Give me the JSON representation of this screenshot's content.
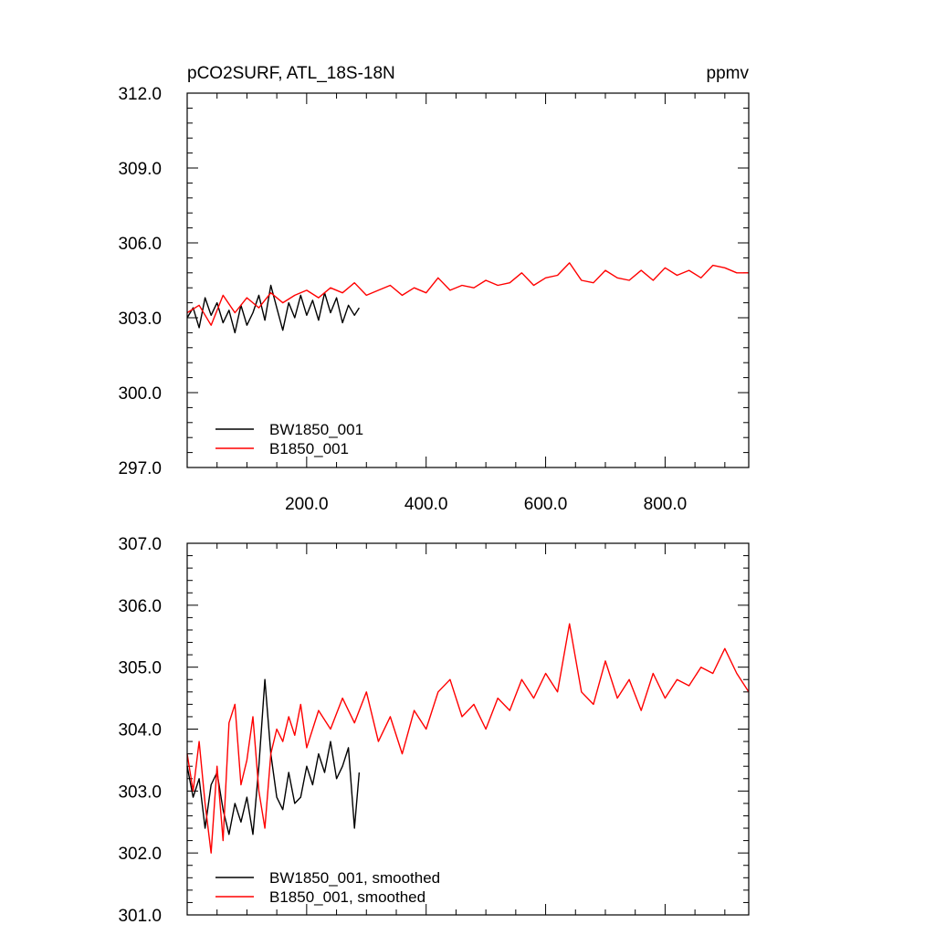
{
  "chart_data": [
    {
      "type": "line",
      "title": "pCO2SURF, ATL_18S-18N",
      "units": "ppmv",
      "xlim": [
        0,
        940
      ],
      "ylim": [
        297.0,
        312.0
      ],
      "xticks": [
        200,
        400,
        600,
        800
      ],
      "xtick_labels": [
        "200.0",
        "400.0",
        "600.0",
        "800.0"
      ],
      "yticks": [
        297,
        300,
        303,
        306,
        309,
        312
      ],
      "ytick_labels": [
        "297.0",
        "300.0",
        "303.0",
        "306.0",
        "309.0",
        "312.0"
      ],
      "legend_position": "bottom-left",
      "series": [
        {
          "name": "BW1850_001",
          "color": "#000000",
          "x": [
            0,
            10,
            20,
            30,
            40,
            50,
            60,
            70,
            80,
            90,
            100,
            110,
            120,
            130,
            140,
            150,
            160,
            170,
            180,
            190,
            200,
            210,
            220,
            230,
            240,
            250,
            260,
            270,
            280,
            288
          ],
          "y": [
            303.0,
            303.4,
            302.6,
            303.8,
            303.1,
            303.6,
            302.8,
            303.3,
            302.4,
            303.5,
            302.7,
            303.2,
            303.9,
            302.9,
            304.3,
            303.4,
            302.5,
            303.6,
            303.0,
            303.9,
            303.1,
            303.7,
            302.9,
            304.0,
            303.2,
            303.8,
            302.8,
            303.5,
            303.1,
            303.4
          ]
        },
        {
          "name": "B1850_001",
          "color": "#ff0000",
          "x": [
            0,
            20,
            40,
            60,
            80,
            100,
            120,
            140,
            160,
            180,
            200,
            220,
            240,
            260,
            280,
            300,
            320,
            340,
            360,
            380,
            400,
            420,
            440,
            460,
            480,
            500,
            520,
            540,
            560,
            580,
            600,
            620,
            640,
            660,
            680,
            700,
            720,
            740,
            760,
            780,
            800,
            820,
            840,
            860,
            880,
            900,
            920,
            940
          ],
          "y": [
            303.2,
            303.5,
            302.7,
            303.9,
            303.2,
            303.8,
            303.4,
            304.0,
            303.6,
            303.9,
            304.1,
            303.8,
            304.2,
            304.0,
            304.4,
            303.9,
            304.1,
            304.3,
            303.9,
            304.2,
            304.0,
            304.6,
            304.1,
            304.3,
            304.2,
            304.5,
            304.3,
            304.4,
            304.8,
            304.3,
            304.6,
            304.7,
            305.2,
            304.5,
            304.4,
            304.9,
            304.6,
            304.5,
            304.9,
            304.5,
            305.0,
            304.7,
            304.9,
            304.6,
            305.1,
            305.0,
            304.8,
            304.8
          ]
        }
      ]
    },
    {
      "type": "line",
      "xlim": [
        0,
        940
      ],
      "ylim": [
        301.0,
        307.0
      ],
      "yticks": [
        301,
        302,
        303,
        304,
        305,
        306,
        307
      ],
      "ytick_labels": [
        "301.0",
        "302.0",
        "303.0",
        "304.0",
        "305.0",
        "306.0",
        "307.0"
      ],
      "legend_position": "bottom-left",
      "series": [
        {
          "name": "BW1850_001, smoothed",
          "color": "#000000",
          "x": [
            0,
            10,
            20,
            30,
            40,
            50,
            60,
            70,
            80,
            90,
            100,
            110,
            120,
            130,
            140,
            150,
            160,
            170,
            180,
            190,
            200,
            210,
            220,
            230,
            240,
            250,
            260,
            270,
            280,
            288
          ],
          "y": [
            303.4,
            302.9,
            303.2,
            302.4,
            303.1,
            303.3,
            302.7,
            302.3,
            302.8,
            302.5,
            302.9,
            302.3,
            303.4,
            304.8,
            303.6,
            302.9,
            302.7,
            303.3,
            302.8,
            302.9,
            303.4,
            303.1,
            303.6,
            303.3,
            303.8,
            303.2,
            303.4,
            303.7,
            302.4,
            303.3
          ]
        },
        {
          "name": "B1850_001, smoothed",
          "color": "#ff0000",
          "x": [
            0,
            10,
            20,
            30,
            40,
            50,
            60,
            70,
            80,
            90,
            100,
            110,
            120,
            130,
            140,
            150,
            160,
            170,
            180,
            190,
            200,
            220,
            240,
            260,
            280,
            300,
            320,
            340,
            360,
            380,
            400,
            420,
            440,
            460,
            480,
            500,
            520,
            540,
            560,
            580,
            600,
            620,
            640,
            660,
            680,
            700,
            720,
            740,
            760,
            780,
            800,
            820,
            840,
            860,
            880,
            900,
            920,
            940
          ],
          "y": [
            303.6,
            303.0,
            303.8,
            302.8,
            302.0,
            303.4,
            302.2,
            304.1,
            304.4,
            303.1,
            303.5,
            304.2,
            303.0,
            302.4,
            303.6,
            304.0,
            303.8,
            304.2,
            303.9,
            304.4,
            303.7,
            304.3,
            304.0,
            304.5,
            304.1,
            304.6,
            303.8,
            304.2,
            303.6,
            304.3,
            304.0,
            304.6,
            304.8,
            304.2,
            304.4,
            304.0,
            304.5,
            304.3,
            304.8,
            304.5,
            304.9,
            304.6,
            305.7,
            304.6,
            304.4,
            305.1,
            304.5,
            304.8,
            304.3,
            304.9,
            304.5,
            304.8,
            304.7,
            305.0,
            304.9,
            305.3,
            304.9,
            304.6
          ]
        }
      ]
    }
  ]
}
